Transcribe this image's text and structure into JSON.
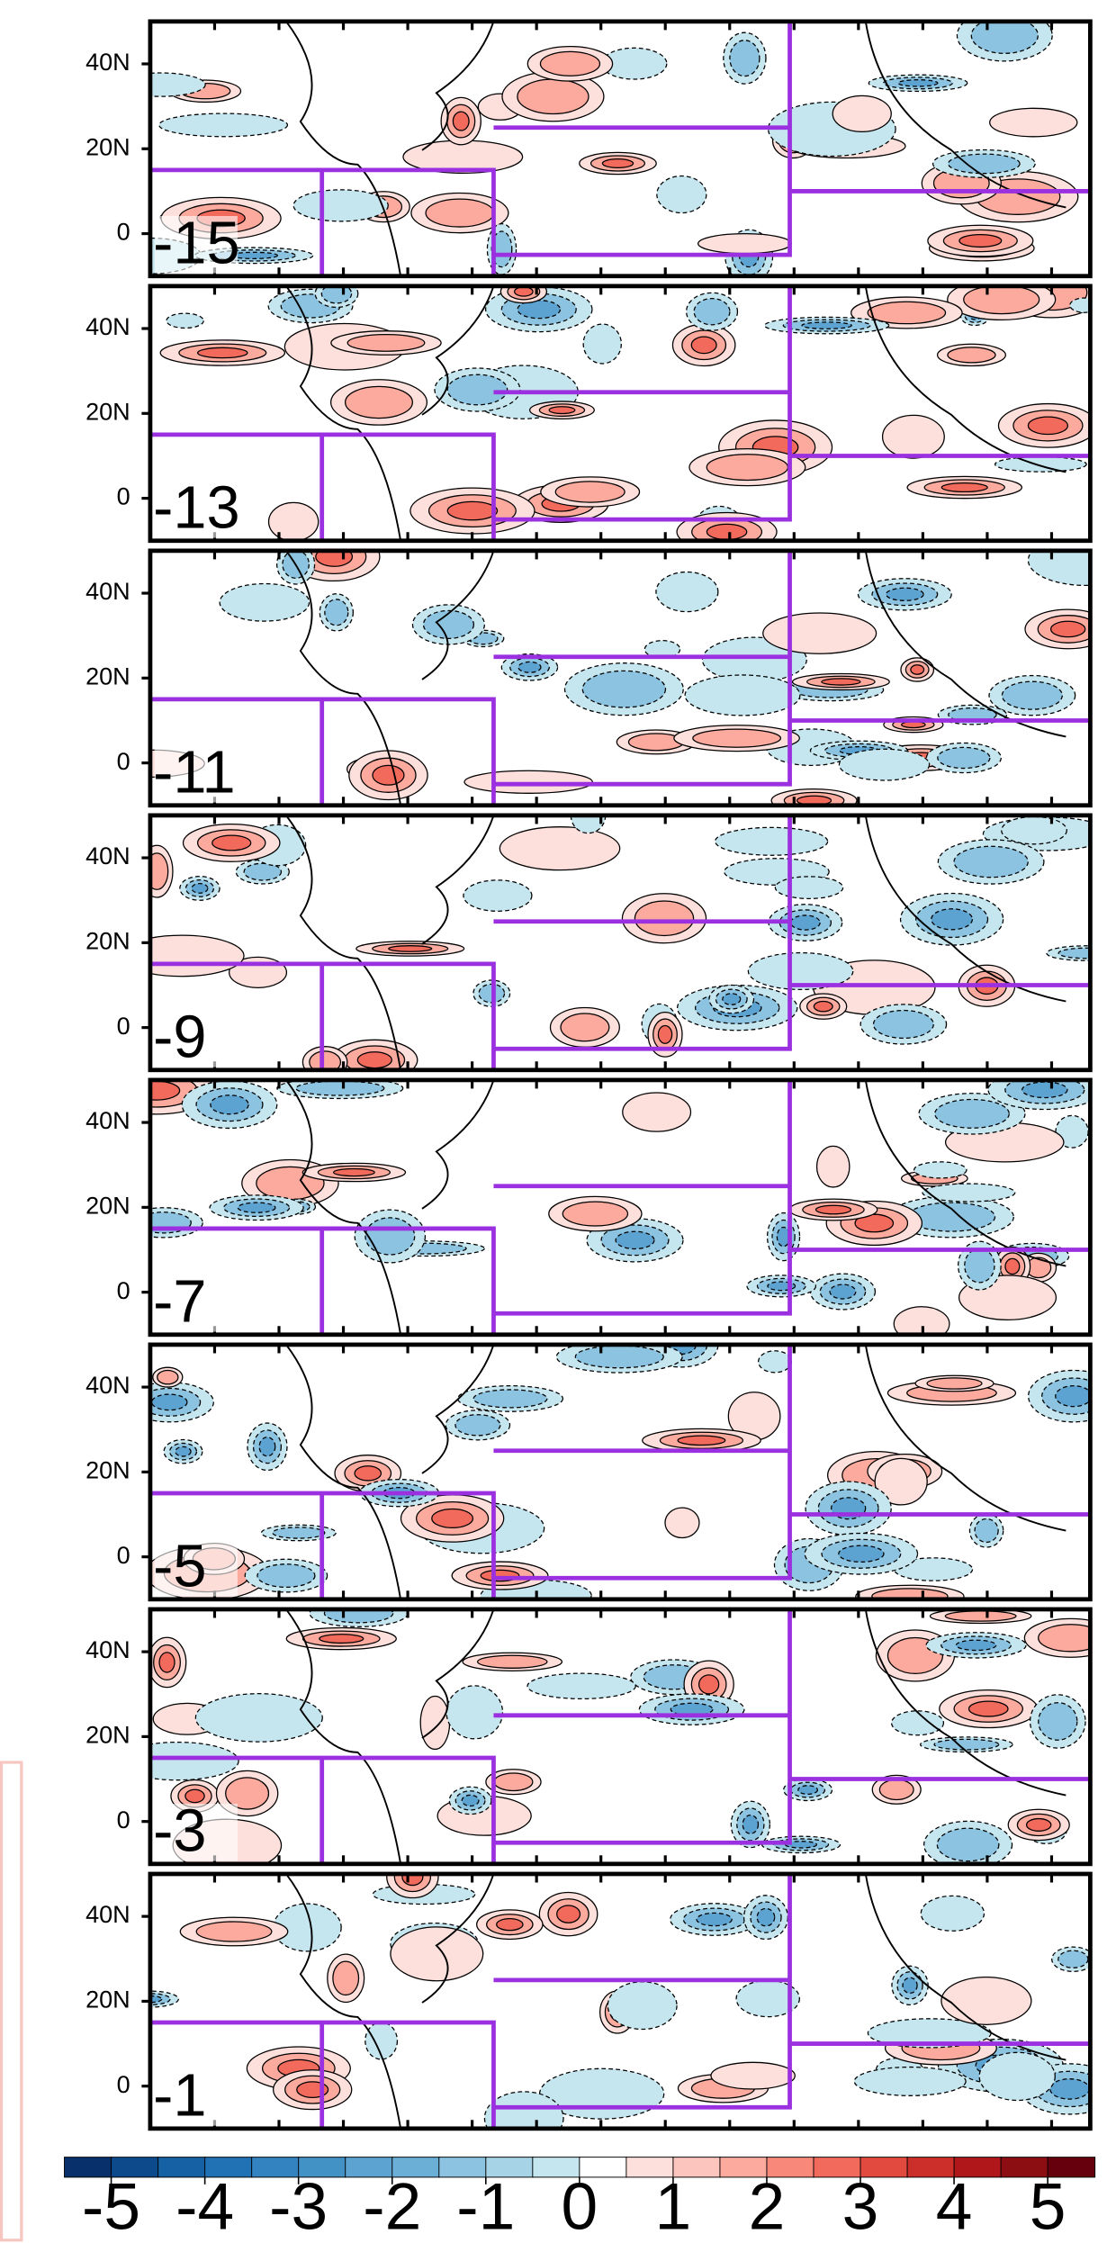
{
  "ylim": [
    -10,
    50
  ],
  "panels": [
    {
      "label": "-15",
      "yticks": [
        {
          "value": 40,
          "label": "40N"
        },
        {
          "value": 20,
          "label": "20N"
        },
        0
      ]
    },
    {
      "label": "-13",
      "yticks": [
        {
          "value": 40,
          "label": "40N"
        },
        {
          "value": 20,
          "label": "20N"
        },
        0
      ]
    },
    {
      "label": "-11",
      "yticks": [
        {
          "value": 40,
          "label": "40N"
        },
        {
          "value": 20,
          "label": "20N"
        },
        0
      ]
    },
    {
      "label": "-9",
      "yticks": [
        {
          "value": 40,
          "label": "40N"
        },
        {
          "value": 20,
          "label": "20N"
        },
        0
      ]
    },
    {
      "label": "-7",
      "yticks": [
        {
          "value": 40,
          "label": "40N"
        },
        {
          "value": 20,
          "label": "20N"
        },
        0
      ]
    },
    {
      "label": "-5",
      "yticks": [
        {
          "value": 40,
          "label": "40N"
        },
        {
          "value": 20,
          "label": "20N"
        },
        0
      ]
    },
    {
      "label": "-3",
      "yticks": [
        {
          "value": 40,
          "label": "40N"
        },
        {
          "value": 20,
          "label": "20N"
        },
        0
      ]
    },
    {
      "label": "-1",
      "yticks": [
        {
          "value": 40,
          "label": "40N"
        },
        {
          "value": 20,
          "label": "20N"
        },
        0
      ]
    }
  ],
  "colorbar": {
    "lim": [
      -5.5,
      5.5
    ],
    "ticks": [
      -5,
      -4,
      -3,
      -2,
      -1,
      0,
      1,
      2,
      3,
      4,
      5
    ],
    "colors": [
      "#08306b",
      "#0c4a8c",
      "#1561a3",
      "#2171b5",
      "#3383c1",
      "#4292c6",
      "#5ca3d2",
      "#6baed6",
      "#8cc3e0",
      "#a6d3e6",
      "#c6e6ef",
      "#ffffff",
      "#fde0dc",
      "#fcc5bd",
      "#fbaa9d",
      "#f8887a",
      "#f26a5c",
      "#e34a3f",
      "#cc2f2a",
      "#b0171b",
      "#8c0d12",
      "#67000d"
    ]
  }
}
